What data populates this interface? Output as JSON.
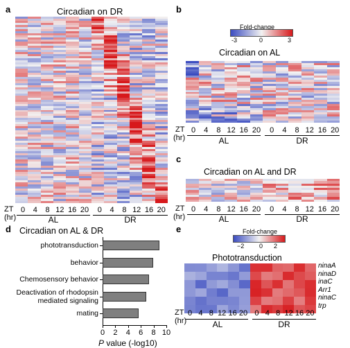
{
  "panels": {
    "a": {
      "letter": "a",
      "title": "Circadian on DR",
      "zt": "ZT",
      "hr": "(hr)",
      "ticks": [
        "0",
        "4",
        "8",
        "12",
        "16",
        "20",
        "0",
        "4",
        "8",
        "12",
        "16",
        "20"
      ],
      "groups": [
        "AL",
        "DR"
      ]
    },
    "b": {
      "letter": "b",
      "title": "Circadian on AL",
      "zt": "ZT",
      "hr": "(hr)",
      "ticks": [
        "0",
        "4",
        "8",
        "12",
        "16",
        "20",
        "0",
        "4",
        "8",
        "12",
        "16",
        "20"
      ],
      "groups": [
        "AL",
        "DR"
      ],
      "colorbar": {
        "title": "Fold-change",
        "min": "-3",
        "mid": "0",
        "max": "3"
      }
    },
    "c": {
      "letter": "c",
      "title": "Circadian on AL and DR",
      "zt": "ZT",
      "hr": "(hr)",
      "ticks": [
        "0",
        "4",
        "8",
        "12",
        "16",
        "20",
        "0",
        "4",
        "8",
        "12",
        "16",
        "20"
      ],
      "groups": [
        "AL",
        "DR"
      ]
    },
    "d": {
      "letter": "d",
      "title": "Circadian on AL & DR"
    },
    "e": {
      "letter": "e",
      "title": "Phototransduction",
      "zt": "ZT",
      "hr": "(hr)",
      "ticks": [
        "0",
        "4",
        "8",
        "12",
        "16",
        "20",
        "0",
        "4",
        "8",
        "12",
        "16",
        "20"
      ],
      "groups": [
        "AL",
        "DR"
      ],
      "colorbar": {
        "title": "Fold-change",
        "min": "−2",
        "mid": "0",
        "max": "2"
      },
      "genes": [
        "ninaA",
        "ninaD",
        "inaC",
        "Arr1",
        "ninaC",
        "trp"
      ]
    }
  },
  "colors": {
    "low": "#3b4cc0",
    "mid": "#f2f2f2",
    "high": "#d7191c",
    "bar": "#7f7f7f"
  },
  "chart_data": {
    "type": "bar",
    "orientation": "horizontal",
    "categories": [
      "phototransduction",
      "behavior",
      "Chemosensory behavior",
      "Deactivation of rhodopsin mediated signaling",
      "mating"
    ],
    "category_lines": [
      [
        "phototransduction"
      ],
      [
        "behavior"
      ],
      [
        "Chemosensory behavior"
      ],
      [
        "Deactivation of rhodopsin",
        "mediated signaling"
      ],
      [
        "mating"
      ]
    ],
    "values": [
      8.9,
      7.9,
      7.3,
      6.9,
      5.6
    ],
    "xlabel_prefix": "P",
    "xlabel_rest": " value (-log10)",
    "xticks": [
      "0",
      "2",
      "4",
      "6",
      "8",
      "10"
    ],
    "xlim": [
      0,
      10
    ]
  }
}
